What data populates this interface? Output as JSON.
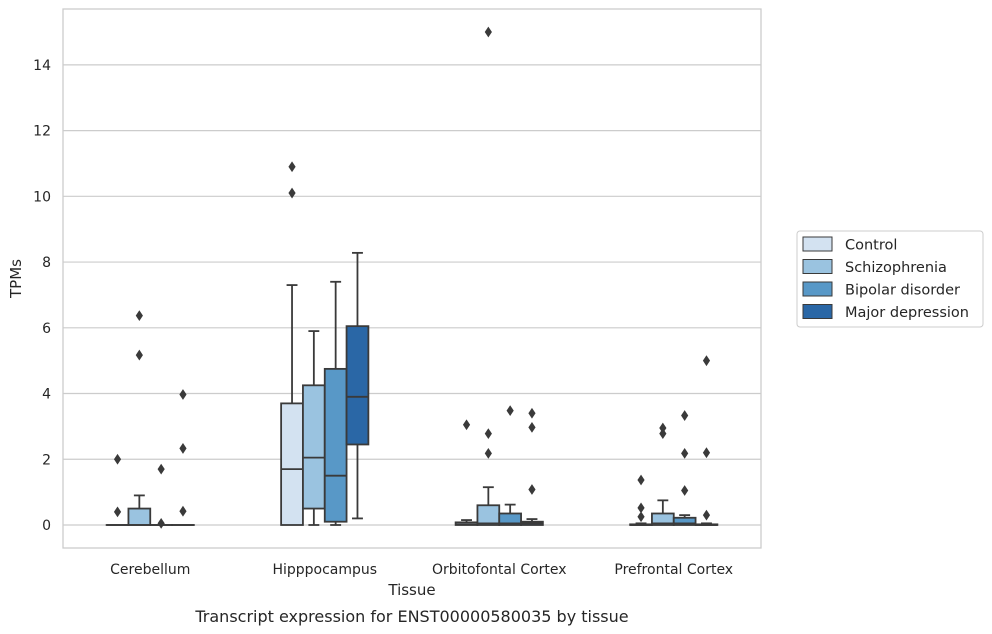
{
  "caption": "Transcript expression for ENST00000580035 by tissue",
  "chart_data": {
    "type": "boxplot",
    "xlabel": "Tissue",
    "ylabel": "TPMs",
    "ylim": [
      -0.7,
      15.7
    ],
    "yticks": [
      0,
      2,
      4,
      6,
      8,
      10,
      12,
      14
    ],
    "grid": "horizontal",
    "legend_placement": "right",
    "categories": [
      "Cerebellum",
      "Hipppocampus",
      "Orbitofontal Cortex",
      "Prefrontal Cortex"
    ],
    "series": [
      {
        "name": "Control",
        "color": "#d3e2f1",
        "boxes": [
          {
            "whislo": 0,
            "q1": 0,
            "med": 0,
            "q3": 0,
            "whishi": 0,
            "fliers": [
              2.0,
              0.4
            ]
          },
          {
            "whislo": 0,
            "q1": 0,
            "med": 1.7,
            "q3": 3.7,
            "whishi": 7.3,
            "fliers": [
              10.9,
              10.1
            ]
          },
          {
            "whislo": 0,
            "q1": 0,
            "med": 0.02,
            "q3": 0.08,
            "whishi": 0.15,
            "fliers": [
              3.05
            ]
          },
          {
            "whislo": 0,
            "q1": 0,
            "med": 0,
            "q3": 0.02,
            "whishi": 0.05,
            "fliers": [
              1.37,
              0.52,
              0.25
            ]
          }
        ]
      },
      {
        "name": "Schizophrenia",
        "color": "#9ac3e0",
        "boxes": [
          {
            "whislo": 0,
            "q1": 0,
            "med": 0,
            "q3": 0.5,
            "whishi": 0.9,
            "fliers": [
              6.37,
              5.17
            ]
          },
          {
            "whislo": 0,
            "q1": 0.5,
            "med": 2.05,
            "q3": 4.25,
            "whishi": 5.9,
            "fliers": []
          },
          {
            "whislo": 0,
            "q1": 0,
            "med": 0.05,
            "q3": 0.6,
            "whishi": 1.15,
            "fliers": [
              15.0,
              2.78,
              2.18
            ]
          },
          {
            "whislo": 0,
            "q1": 0,
            "med": 0.05,
            "q3": 0.35,
            "whishi": 0.75,
            "fliers": [
              2.95,
              2.78
            ]
          }
        ]
      },
      {
        "name": "Bipolar disorder",
        "color": "#5898c7",
        "boxes": [
          {
            "whislo": 0,
            "q1": 0,
            "med": 0,
            "q3": 0,
            "whishi": 0,
            "fliers": [
              1.7,
              0.05
            ]
          },
          {
            "whislo": 0,
            "q1": 0.1,
            "med": 1.5,
            "q3": 4.75,
            "whishi": 7.4,
            "fliers": []
          },
          {
            "whislo": 0,
            "q1": 0,
            "med": 0.05,
            "q3": 0.35,
            "whishi": 0.62,
            "fliers": [
              3.48
            ]
          },
          {
            "whislo": 0,
            "q1": 0,
            "med": 0.05,
            "q3": 0.22,
            "whishi": 0.3,
            "fliers": [
              3.33,
              2.18,
              1.05
            ]
          }
        ]
      },
      {
        "name": "Major depression",
        "color": "#2a67a6",
        "boxes": [
          {
            "whislo": 0,
            "q1": 0,
            "med": 0,
            "q3": 0,
            "whishi": 0,
            "fliers": [
              3.97,
              2.33,
              0.42
            ]
          },
          {
            "whislo": 0.2,
            "q1": 2.45,
            "med": 3.9,
            "q3": 6.05,
            "whishi": 8.28,
            "fliers": []
          },
          {
            "whislo": 0,
            "q1": 0,
            "med": 0.05,
            "q3": 0.1,
            "whishi": 0.18,
            "fliers": [
              3.4,
              2.97,
              1.08
            ]
          },
          {
            "whislo": 0,
            "q1": 0,
            "med": 0,
            "q3": 0.02,
            "whishi": 0.05,
            "fliers": [
              5.0,
              2.2,
              0.3
            ]
          }
        ]
      }
    ]
  }
}
